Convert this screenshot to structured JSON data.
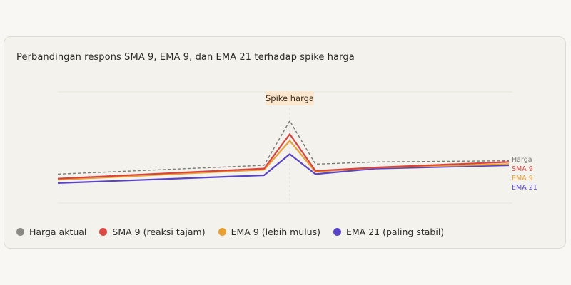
{
  "title": "Perbandingan respons SMA 9, EMA 9, dan EMA 21 terhadap spike harga",
  "annotation": "Spike harga",
  "colors": {
    "harga": "#7a7a76",
    "sma9": "#d9433f",
    "ema9": "#e8a03a",
    "ema21": "#5a44c6",
    "annotation_bg": "#fbe7cf"
  },
  "legend": [
    {
      "label": "Harga aktual",
      "color": "#8a8984"
    },
    {
      "label": "SMA 9 (reaksi tajam)",
      "color": "#dc4a46"
    },
    {
      "label": "EMA 9 (lebih mulus)",
      "color": "#ea9f33"
    },
    {
      "label": "EMA 21 (paling stabil)",
      "color": "#5a44c6"
    }
  ],
  "chart_data": {
    "type": "line",
    "title": "Perbandingan respons SMA 9, EMA 9, dan EMA 21 terhadap spike harga",
    "x": [
      0,
      1,
      2,
      3,
      4,
      5
    ],
    "ylim": [
      0,
      100
    ],
    "grid": false,
    "legend_position": "bottom",
    "annotations": [
      {
        "text": "Spike harga",
        "x": 2
      }
    ],
    "series": [
      {
        "key": "harga",
        "name": "Harga",
        "style": "dashed",
        "values": [
          26,
          34,
          74,
          35,
          37,
          38
        ]
      },
      {
        "key": "sma9",
        "name": "SMA 9",
        "style": "solid",
        "values": [
          22,
          31,
          62,
          29,
          32,
          37
        ]
      },
      {
        "key": "ema9",
        "name": "EMA 9",
        "style": "solid",
        "values": [
          21,
          30,
          56,
          28,
          32,
          35
        ]
      },
      {
        "key": "ema21",
        "name": "EMA 21",
        "style": "solid",
        "values": [
          18,
          25,
          44,
          26,
          31,
          34
        ]
      }
    ]
  }
}
